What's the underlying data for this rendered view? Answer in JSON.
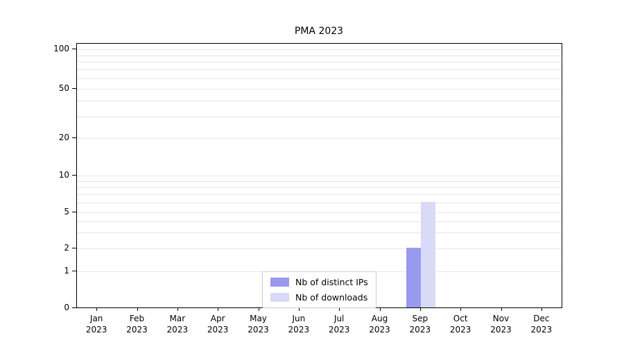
{
  "chart_data": {
    "type": "bar",
    "title": "PMA 2023",
    "categories": [
      {
        "month": "Jan",
        "year": "2023"
      },
      {
        "month": "Feb",
        "year": "2023"
      },
      {
        "month": "Mar",
        "year": "2023"
      },
      {
        "month": "Apr",
        "year": "2023"
      },
      {
        "month": "May",
        "year": "2023"
      },
      {
        "month": "Jun",
        "year": "2023"
      },
      {
        "month": "Jul",
        "year": "2023"
      },
      {
        "month": "Aug",
        "year": "2023"
      },
      {
        "month": "Sep",
        "year": "2023"
      },
      {
        "month": "Oct",
        "year": "2023"
      },
      {
        "month": "Nov",
        "year": "2023"
      },
      {
        "month": "Dec",
        "year": "2023"
      }
    ],
    "series": [
      {
        "name": "Nb of distinct IPs",
        "color": "#9999ee",
        "values": [
          0,
          0,
          0,
          0,
          0,
          0,
          0,
          0,
          2,
          0,
          0,
          0
        ]
      },
      {
        "name": "Nb of downloads",
        "color": "#d9daf8",
        "values": [
          0,
          0,
          0,
          0,
          0,
          0,
          0,
          0,
          6,
          0,
          0,
          0
        ]
      }
    ],
    "yticks": [
      0,
      1,
      2,
      5,
      10,
      20,
      50,
      100
    ],
    "ylim": [
      0,
      110
    ],
    "yscale": "symlog",
    "grid": {
      "horizontal": true,
      "vertical": false,
      "values": [
        1,
        2,
        3,
        4,
        5,
        6,
        7,
        8,
        9,
        10,
        20,
        30,
        40,
        50,
        60,
        70,
        80,
        90,
        100
      ]
    },
    "legend": {
      "position": "lower center inside plot"
    }
  }
}
